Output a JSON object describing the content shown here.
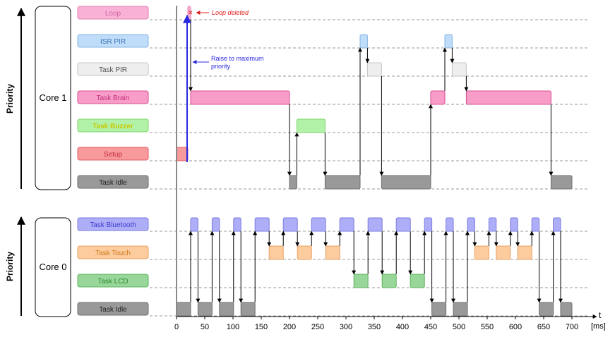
{
  "axis": {
    "label": "t",
    "unit": "[ms]",
    "ticks": [
      0,
      50,
      100,
      150,
      200,
      250,
      300,
      350,
      400,
      450,
      500,
      550,
      600,
      650,
      700
    ]
  },
  "priority_label": "Priority",
  "cores": [
    {
      "label": "Core 1",
      "tasks": [
        {
          "name": "Loop",
          "fill": "#f8b2d6",
          "stroke": "#e27fb0",
          "text": "#d0609e",
          "segments": [
            [
              20,
              25
            ]
          ]
        },
        {
          "name": "ISR PIR",
          "fill": "#bfdcf8",
          "stroke": "#86b4e6",
          "text": "#3d74b8",
          "segments": [
            [
              325,
              338
            ],
            [
              475,
              488
            ]
          ]
        },
        {
          "name": "Task PIR",
          "fill": "#eeeeee",
          "stroke": "#c4c4c4",
          "text": "#555555",
          "segments": [
            [
              338,
              363
            ],
            [
              488,
              513
            ]
          ]
        },
        {
          "name": "Task Brain",
          "fill": "#f89cc8",
          "stroke": "#d94f92",
          "text": "#c0307a",
          "segments": [
            [
              25,
              200
            ],
            [
              450,
              475
            ],
            [
              513,
              663
            ]
          ]
        },
        {
          "name": "Task Buzzer",
          "fill": "#b2f2a8",
          "stroke": "#7ed46e",
          "text": "#c8c800",
          "segments": [
            [
              213,
              263
            ]
          ]
        },
        {
          "name": "Setup",
          "fill": "#f8999c",
          "stroke": "#de5c62",
          "text": "#c0283a",
          "segments": [
            [
              0,
              20
            ]
          ]
        },
        {
          "name": "Task Idle",
          "fill": "#999999",
          "stroke": "#6e6e6e",
          "text": "#222222",
          "segments": [
            [
              200,
              213
            ],
            [
              263,
              325
            ],
            [
              363,
              450
            ],
            [
              663,
              700
            ]
          ]
        }
      ]
    },
    {
      "label": "Core 0",
      "tasks": [
        {
          "name": "Task Bluetooth",
          "fill": "#aeaef8",
          "stroke": "#7a7ae2",
          "text": "#3c3ccc",
          "segments": [
            [
              25,
              38
            ],
            [
              63,
              76
            ],
            [
              101,
              114
            ],
            [
              139,
              164
            ],
            [
              189,
              214
            ],
            [
              239,
              264
            ],
            [
              289,
              314
            ],
            [
              339,
              364
            ],
            [
              389,
              414
            ],
            [
              439,
              452
            ],
            [
              477,
              490
            ],
            [
              515,
              528
            ],
            [
              553,
              566
            ],
            [
              591,
              604
            ],
            [
              629,
              642
            ],
            [
              667,
              680
            ]
          ]
        },
        {
          "name": "Task Touch",
          "fill": "#fccb9e",
          "stroke": "#eba060",
          "text": "#d07818",
          "segments": [
            [
              164,
              189
            ],
            [
              214,
              239
            ],
            [
              264,
              289
            ],
            [
              528,
              553
            ],
            [
              566,
              591
            ],
            [
              604,
              629
            ]
          ]
        },
        {
          "name": "Task LCD",
          "fill": "#99d69a",
          "stroke": "#5cb45e",
          "text": "#2c8a2e",
          "segments": [
            [
              314,
              339
            ],
            [
              364,
              389
            ],
            [
              414,
              439
            ]
          ]
        },
        {
          "name": "Task Idle",
          "fill": "#999999",
          "stroke": "#6e6e6e",
          "text": "#222222",
          "segments": [
            [
              0,
              25
            ],
            [
              38,
              63
            ],
            [
              76,
              101
            ],
            [
              114,
              139
            ],
            [
              452,
              477
            ],
            [
              490,
              515
            ],
            [
              642,
              667
            ],
            [
              680,
              700
            ]
          ]
        }
      ]
    }
  ],
  "annotations": {
    "loop_deleted": "Loop deleted",
    "raise_line1": "Raise to maximum",
    "raise_line2": "priority"
  },
  "colors": {
    "loop_deleted": "#e02020",
    "raise": "#2828e0",
    "arrow": "#000000",
    "gridline": "#999999"
  }
}
